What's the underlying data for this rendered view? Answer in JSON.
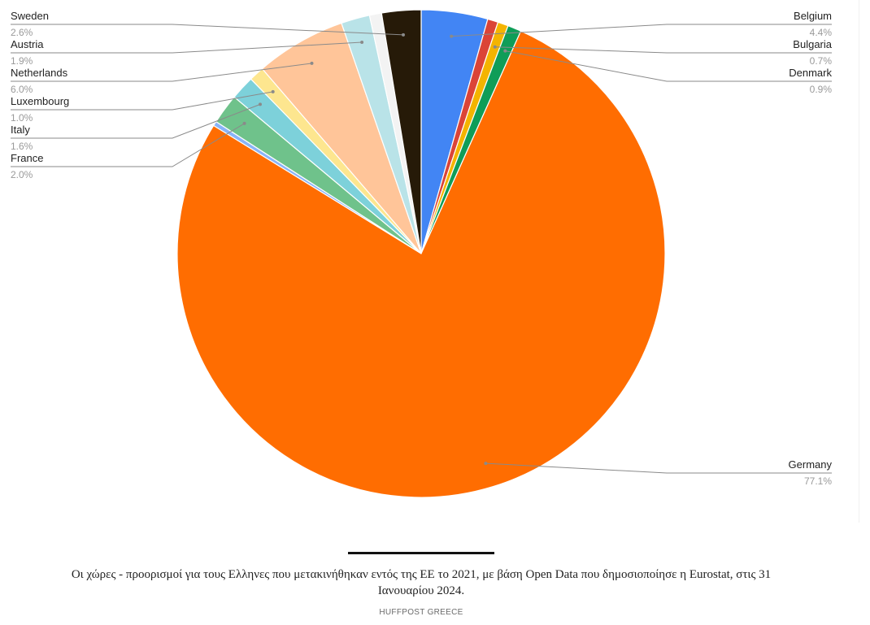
{
  "chart_data": {
    "type": "pie",
    "title": "",
    "legend": "none",
    "slices": [
      {
        "name": "Belgium",
        "label": "4.4%",
        "value": 4.4,
        "color": "#4285f4",
        "side": "right"
      },
      {
        "name": "",
        "label": "",
        "value": 0.7,
        "color": "#db4437",
        "side": "none"
      },
      {
        "name": "Bulgaria",
        "label": "0.7%",
        "value": 0.7,
        "color": "#f4b400",
        "side": "right"
      },
      {
        "name": "Denmark",
        "label": "0.9%",
        "value": 0.9,
        "color": "#0f9d58",
        "side": "right"
      },
      {
        "name": "Germany",
        "label": "77.1%",
        "value": 77.1,
        "color": "#ff6d01",
        "side": "right"
      },
      {
        "name": "",
        "label": "",
        "value": 0.3,
        "color": "#8ab4f8",
        "side": "none"
      },
      {
        "name": "France",
        "label": "2.0%",
        "value": 2.0,
        "color": "#6fc28b",
        "side": "left"
      },
      {
        "name": "Italy",
        "label": "1.6%",
        "value": 1.6,
        "color": "#7dd1da",
        "side": "left"
      },
      {
        "name": "Luxembourg",
        "label": "1.0%",
        "value": 1.0,
        "color": "#fde68f",
        "side": "left"
      },
      {
        "name": "Netherlands",
        "label": "6.0%",
        "value": 6.0,
        "color": "#ffc599",
        "side": "left"
      },
      {
        "name": "Austria",
        "label": "1.9%",
        "value": 1.9,
        "color": "#b9e3e8",
        "side": "left"
      },
      {
        "name": "",
        "label": "",
        "value": 0.8,
        "color": "#f3f3f3",
        "side": "none"
      },
      {
        "name": "Sweden",
        "label": "2.6%",
        "value": 2.6,
        "color": "#261a08",
        "side": "left"
      }
    ]
  },
  "caption": {
    "text": "Οι χώρες - προορισμοί για τους Ελληνες που μετακινήθηκαν εντός της ΕΕ το 2021, με βάση Open Data που δημοσιοποίησε η Eurostat, στις 31 Ιανουαρίου 2024.",
    "credit": "HUFFPOST GREECE"
  }
}
